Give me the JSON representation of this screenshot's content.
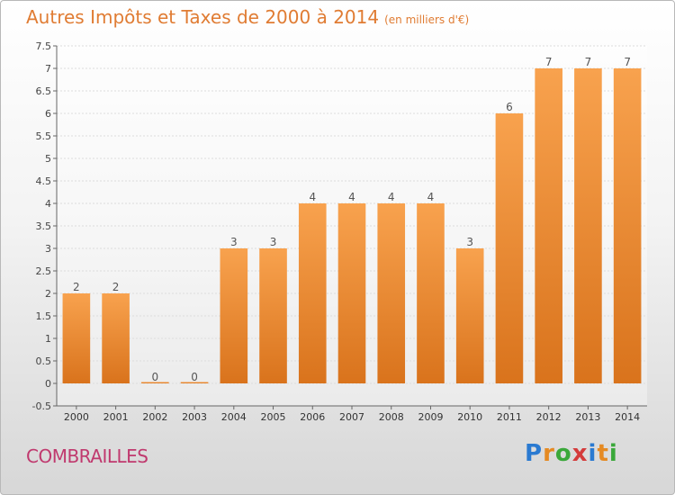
{
  "title": "Autres Impôts et Taxes de 2000 à 2014",
  "unit": "(en milliers d'€)",
  "commune": "COMBRAILLES",
  "logo": {
    "letters": [
      "P",
      "r",
      "o",
      "x",
      "i",
      "t",
      "i"
    ],
    "colors": [
      "#2a7ad1",
      "#e58a23",
      "#3aa83a",
      "#d43b3b",
      "#2a7ad1",
      "#e58a23",
      "#3aa83a"
    ]
  },
  "colors": {
    "bar_light": "#f8a24e",
    "bar_dark": "#d9731c",
    "accent": "#e07c33"
  },
  "chart_data": {
    "type": "bar",
    "categories": [
      "2000",
      "2001",
      "2002",
      "2003",
      "2004",
      "2005",
      "2006",
      "2007",
      "2008",
      "2009",
      "2010",
      "2011",
      "2012",
      "2013",
      "2014"
    ],
    "values": [
      2,
      2,
      0,
      0,
      3,
      3,
      4,
      4,
      4,
      4,
      3,
      6,
      7,
      7,
      7
    ],
    "data_labels": [
      "2",
      "2",
      "0",
      "0",
      "3",
      "3",
      "4",
      "4",
      "4",
      "4",
      "3",
      "6",
      "7",
      "7",
      "7"
    ],
    "ylim": [
      -0.5,
      7.5
    ],
    "yticks": [
      "-0.5",
      "0",
      "0.5",
      "1",
      "1.5",
      "2",
      "2.5",
      "3",
      "3.5",
      "4",
      "4.5",
      "5",
      "5.5",
      "6",
      "6.5",
      "7",
      "7.5"
    ],
    "ytick_values": [
      -0.5,
      0,
      0.5,
      1,
      1.5,
      2,
      2.5,
      3,
      3.5,
      4,
      4.5,
      5,
      5.5,
      6,
      6.5,
      7,
      7.5
    ],
    "grid": "horizontal"
  }
}
